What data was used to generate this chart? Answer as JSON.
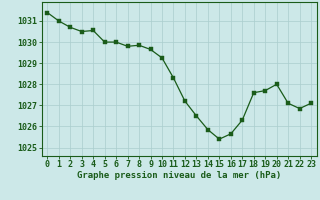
{
  "x": [
    0,
    1,
    2,
    3,
    4,
    5,
    6,
    7,
    8,
    9,
    10,
    11,
    12,
    13,
    14,
    15,
    16,
    17,
    18,
    19,
    20,
    21,
    22,
    23
  ],
  "y": [
    1031.4,
    1031.0,
    1030.7,
    1030.5,
    1030.55,
    1030.0,
    1030.0,
    1029.8,
    1029.85,
    1029.65,
    1029.25,
    1028.3,
    1027.2,
    1026.5,
    1025.85,
    1025.4,
    1025.65,
    1026.3,
    1027.6,
    1027.7,
    1028.0,
    1027.1,
    1026.85,
    1027.1
  ],
  "line_color": "#1a5c1a",
  "marker_color": "#1a5c1a",
  "bg_color": "#cce8e8",
  "grid_color": "#aacece",
  "xlabel": "Graphe pression niveau de la mer (hPa)",
  "xlabel_fontsize": 6.5,
  "ylabel_ticks": [
    1025,
    1026,
    1027,
    1028,
    1029,
    1030,
    1031
  ],
  "xlim": [
    -0.5,
    23.5
  ],
  "ylim": [
    1024.6,
    1031.9
  ],
  "tick_fontsize": 6.0,
  "marker_size": 2.2,
  "line_width": 0.9,
  "spine_color": "#1a5c1a"
}
